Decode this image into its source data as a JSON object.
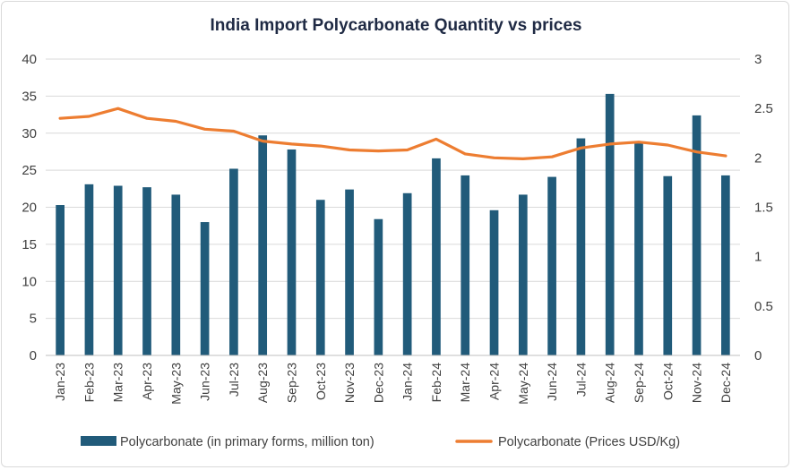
{
  "chart_data": {
    "type": "bar",
    "title": "India Import Polycarbonate Quantity vs prices",
    "categories": [
      "Jan-23",
      "Feb-23",
      "Mar-23",
      "Apr-23",
      "May-23",
      "Jun-23",
      "Jul-23",
      "Aug-23",
      "Sep-23",
      "Oct-23",
      "Nov-23",
      "Dec-23",
      "Jan-24",
      "Feb-24",
      "Mar-24",
      "Apr-24",
      "May-24",
      "Jun-24",
      "Jul-24",
      "Aug-24",
      "Sep-24",
      "Oct-24",
      "Nov-24",
      "Dec-24"
    ],
    "series": [
      {
        "name": "Polycarbonate (in primary forms, million ton)",
        "type": "bar",
        "axis": "left",
        "color": "#215b7a",
        "values": [
          20.3,
          23.1,
          22.9,
          22.7,
          21.7,
          18.0,
          25.2,
          29.7,
          27.8,
          21.0,
          22.4,
          18.4,
          21.9,
          26.6,
          24.3,
          19.6,
          21.7,
          24.1,
          29.3,
          35.3,
          28.7,
          24.2,
          32.4,
          24.3
        ]
      },
      {
        "name": "Polycarbonate (Prices USD/Kg)",
        "type": "line",
        "axis": "right",
        "color": "#ed7d31",
        "values": [
          2.4,
          2.42,
          2.5,
          2.4,
          2.37,
          2.29,
          2.27,
          2.17,
          2.14,
          2.12,
          2.08,
          2.07,
          2.08,
          2.19,
          2.04,
          2.0,
          1.99,
          2.01,
          2.1,
          2.14,
          2.16,
          2.13,
          2.06,
          2.02
        ]
      }
    ],
    "y_left": {
      "min": 0,
      "max": 40,
      "ticks": [
        "0",
        "5",
        "10",
        "15",
        "20",
        "25",
        "30",
        "35",
        "40"
      ],
      "tick_values": [
        0,
        5,
        10,
        15,
        20,
        25,
        30,
        35,
        40
      ]
    },
    "y_right": {
      "min": 0,
      "max": 3,
      "ticks": [
        "0",
        "0.5",
        "1",
        "1.5",
        "2",
        "2.5",
        "3"
      ],
      "tick_values": [
        0,
        0.5,
        1,
        1.5,
        2,
        2.5,
        3
      ]
    },
    "grid": true,
    "legend_position": "bottom"
  }
}
